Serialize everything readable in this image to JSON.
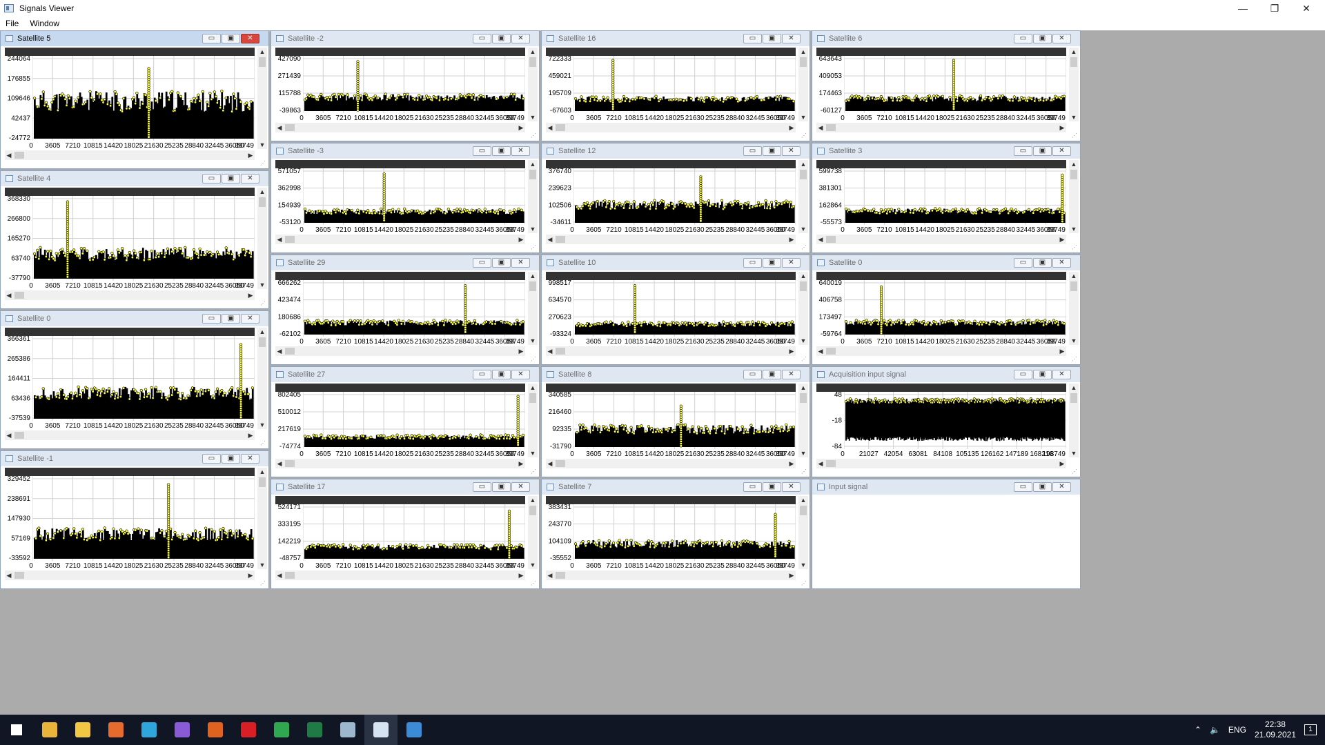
{
  "app": {
    "title": "Signals Viewer",
    "menu": [
      "File",
      "Window"
    ],
    "window_controls": [
      "—",
      "❐",
      "✕"
    ]
  },
  "child_controls": [
    "▭",
    "▣",
    "✕"
  ],
  "scroll_glyphs": {
    "up": "▲",
    "down": "▼",
    "left": "◀",
    "right": "▶"
  },
  "colors": {
    "trace_fill": "#ffff44",
    "trace_edge": "#000000",
    "plot_header": "#333333",
    "mdi_background": "#ababab",
    "taskbar": "#101623"
  },
  "default_x_ticks": [
    "0",
    "3605",
    "7210",
    "10815",
    "14420",
    "18025",
    "21630",
    "25235",
    "28840",
    "32445",
    "36050",
    "39749"
  ],
  "windows": [
    {
      "title": "Satellite 5",
      "active": true,
      "y_ticks": [
        "244064",
        "176855",
        "109646",
        "42437",
        "-24772"
      ],
      "spike": 0.53,
      "spike_h": 0.85,
      "base": 0.45,
      "noise": 0.55
    },
    {
      "title": "Satellite -2",
      "y_ticks": [
        "427090",
        "271439",
        "115788",
        "-39863"
      ],
      "spike": 0.25,
      "spike_h": 0.9,
      "base": 0.2,
      "noise": 0.25
    },
    {
      "title": "Satellite 16",
      "y_ticks": [
        "722333",
        "459021",
        "195709",
        "-67603"
      ],
      "spike": 0.18,
      "spike_h": 0.92,
      "base": 0.15,
      "noise": 0.22
    },
    {
      "title": "Satellite 6",
      "y_ticks": [
        "643643",
        "409053",
        "174463",
        "-60127"
      ],
      "spike": 0.5,
      "spike_h": 0.92,
      "base": 0.18,
      "noise": 0.22
    },
    {
      "title": "Satellite 4",
      "y_ticks": [
        "368330",
        "266800",
        "165270",
        "63740",
        "-37790"
      ],
      "spike": 0.16,
      "spike_h": 0.93,
      "base": 0.28,
      "noise": 0.35
    },
    {
      "title": "Satellite -3",
      "y_ticks": [
        "571057",
        "362998",
        "154939",
        "-53120"
      ],
      "spike": 0.37,
      "spike_h": 0.9,
      "base": 0.15,
      "noise": 0.2
    },
    {
      "title": "Satellite 12",
      "y_ticks": [
        "376740",
        "239623",
        "102506",
        "-34611"
      ],
      "spike": 0.58,
      "spike_h": 0.85,
      "base": 0.3,
      "noise": 0.35
    },
    {
      "title": "Satellite 3",
      "y_ticks": [
        "599738",
        "381301",
        "162864",
        "-55573"
      ],
      "spike": 0.995,
      "spike_h": 0.88,
      "base": 0.17,
      "noise": 0.2
    },
    {
      "title": "Satellite 0",
      "y_ticks": [
        "366361",
        "265386",
        "164411",
        "63436",
        "-37539"
      ],
      "spike": 0.95,
      "spike_h": 0.9,
      "base": 0.3,
      "noise": 0.35
    },
    {
      "title": "Satellite 29",
      "y_ticks": [
        "666262",
        "423474",
        "180686",
        "-62102"
      ],
      "spike": 0.74,
      "spike_h": 0.9,
      "base": 0.17,
      "noise": 0.2
    },
    {
      "title": "Satellite 10",
      "y_ticks": [
        "998517",
        "634570",
        "270623",
        "-93324"
      ],
      "spike": 0.28,
      "spike_h": 0.9,
      "base": 0.13,
      "noise": 0.18
    },
    {
      "title": "Satellite 0",
      "y_ticks": [
        "640019",
        "406758",
        "173497",
        "-59764"
      ],
      "spike": 0.17,
      "spike_h": 0.88,
      "base": 0.17,
      "noise": 0.2
    },
    {
      "title": "Satellite -1",
      "y_ticks": [
        "329452",
        "238691",
        "147930",
        "57169",
        "-33592"
      ],
      "spike": 0.62,
      "spike_h": 0.9,
      "base": 0.3,
      "noise": 0.33
    },
    {
      "title": "Satellite 27",
      "y_ticks": [
        "802405",
        "510012",
        "217619",
        "-74774"
      ],
      "spike": 0.98,
      "spike_h": 0.92,
      "base": 0.13,
      "noise": 0.16
    },
    {
      "title": "Satellite 8",
      "y_ticks": [
        "340585",
        "216460",
        "92335",
        "-31790"
      ],
      "spike": 0.49,
      "spike_h": 0.75,
      "base": 0.28,
      "noise": 0.35
    },
    {
      "title": "Acquisition input signal",
      "y_ticks": [
        "48",
        "-18",
        "-84"
      ],
      "x_ticks": [
        "0",
        "21027",
        "42054",
        "63081",
        "84108",
        "105135",
        "126162",
        "147189",
        "168216",
        "198749"
      ],
      "spike": -1,
      "spike_h": 0,
      "base": 0.5,
      "noise": 0.7,
      "dense": true
    },
    {
      "title": "Satellite 17",
      "y_ticks": [
        "524171",
        "333195",
        "142219",
        "-48757"
      ],
      "spike": 0.94,
      "spike_h": 0.88,
      "base": 0.17,
      "noise": 0.2
    },
    {
      "title": "Satellite 7",
      "y_ticks": [
        "383431",
        "243770",
        "104109",
        "-35552"
      ],
      "spike": 0.92,
      "spike_h": 0.82,
      "base": 0.2,
      "noise": 0.3
    },
    {
      "title": "Input signal",
      "empty": true
    }
  ],
  "taskbar": {
    "apps": [
      "start",
      "chrome",
      "explorer",
      "firefox",
      "telegram",
      "visual-studio",
      "matlab",
      "netflix",
      "xming",
      "excel",
      "wireshark",
      "signals-viewer",
      "paint"
    ],
    "lang": "ENG",
    "time": "22:38",
    "date": "21.09.2021",
    "notification": "1"
  }
}
